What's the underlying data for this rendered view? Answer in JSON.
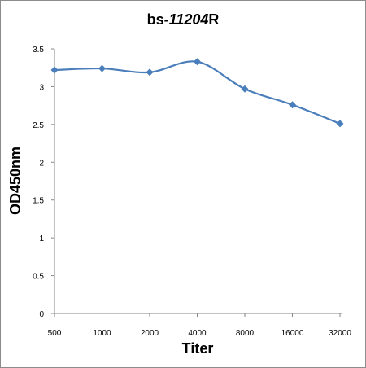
{
  "chart_data": {
    "type": "line",
    "title_prefix": "bs-",
    "title_italic": "11204",
    "title_suffix": "R",
    "xlabel": "Titer",
    "ylabel": "OD450nm",
    "categories": [
      "500",
      "1000",
      "2000",
      "4000",
      "8000",
      "16000",
      "32000"
    ],
    "series": [
      {
        "values": [
          3.22,
          3.24,
          3.19,
          3.33,
          2.97,
          2.76,
          2.51
        ]
      }
    ],
    "ylim": [
      0,
      3.5
    ],
    "yticks": [
      "0",
      "0.5",
      "1",
      "1.5",
      "2",
      "2.5",
      "3",
      "3.5"
    ],
    "grid": false,
    "legend": "none",
    "line_color": "#4a7ebb",
    "marker_color": "#4a7ebb"
  }
}
